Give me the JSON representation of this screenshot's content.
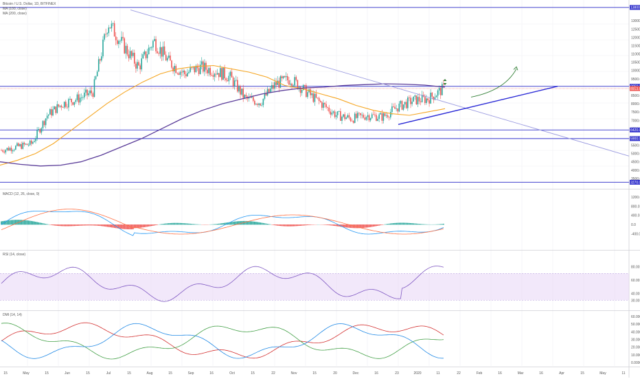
{
  "header": {
    "symbol_line": "Bitcoin / U.S. Dollar, 1D, BITFINEX",
    "ma_fast_label": "MA (100, close)",
    "ma_slow_label": "MA (200, close)"
  },
  "panels": {
    "macd_label": "MACD (12, 26, close, 9)",
    "rsi_label": "RSI (14, close)",
    "dmi_label": "DMI (14, 14)"
  },
  "colors": {
    "candle_up": "#26a69a",
    "candle_down": "#ef5350",
    "ma_fast": "#f5a623",
    "ma_slow": "#5b3d99",
    "trendline": "#2a2ad6",
    "level_line": "#3333cc",
    "red_level": "#ef5350",
    "rsi_line": "#7e57c2",
    "rsi_band": "#e9d8f7",
    "arrow": "#2e7d32",
    "macd_line": "#2196f3",
    "signal_line": "#ff7043"
  },
  "price_scale": {
    "ticks": [
      "13000.0",
      "12500.0",
      "12000.0",
      "11500.0",
      "11000.0",
      "10500.0",
      "10000.0",
      "9500.0",
      "8500.0",
      "8000.0",
      "7500.0",
      "7000.0",
      "6500.0",
      "5500.0",
      "5000.0",
      "4500.0",
      "4000.0",
      "3500.0"
    ],
    "tags": [
      {
        "label": "13800.0",
        "kind": "level"
      },
      {
        "label": "9050.0",
        "kind": "level"
      },
      {
        "label": "8913.8",
        "kind": "price"
      },
      {
        "label": "6420.0",
        "kind": "level"
      },
      {
        "label": "5900.0",
        "kind": "level"
      },
      {
        "label": "3270.0",
        "kind": "level"
      }
    ]
  },
  "macd_scale": {
    "ticks": [
      "1200.0",
      "800.0",
      "400.0",
      "0.0",
      "-400.0"
    ]
  },
  "rsi_scale": {
    "ticks": [
      "80.00",
      "60.00",
      "40.00",
      "30.00"
    ]
  },
  "dmi_scale": {
    "ticks": [
      "60.0000",
      "50.0000",
      "40.0000",
      "30.0000",
      "20.0000",
      "10.0000",
      "0.0000"
    ]
  },
  "time_axis": {
    "labels": [
      "15",
      "May",
      "15",
      "Jun",
      "15",
      "Jul",
      "15",
      "Aug",
      "15",
      "Sep",
      "16",
      "Oct",
      "15",
      "22",
      "Nov",
      "15",
      "20",
      "Dec",
      "16",
      "23",
      "2020",
      "11",
      "22",
      "Feb",
      "16",
      "Mar",
      "16",
      "Apr",
      "15",
      "May",
      "11"
    ]
  },
  "chart_data": {
    "type": "candlestick",
    "series": [
      {
        "name": "Bitcoin / U.S. Dollar, 1D, BITFINEX",
        "close": [
          5200,
          5400,
          5600,
          7300,
          8000,
          8300,
          8700,
          12900,
          11500,
          10200,
          11800,
          10500,
          9800,
          10200,
          10000,
          9600,
          8300,
          8100,
          9200,
          9500,
          8700,
          8000,
          7300,
          7100,
          7300,
          7200,
          7800,
          8200,
          8300,
          8900
        ]
      },
      {
        "name": "MA (100, close)",
        "values": [
          4300,
          4600,
          5000,
          5600,
          6400,
          7200,
          8000,
          8700,
          9300,
          9800,
          10100,
          10250,
          10300,
          10100,
          9900,
          9600,
          9100,
          8900,
          8600,
          8300,
          7900,
          7600,
          7400,
          7300,
          7500,
          7700
        ]
      },
      {
        "name": "MA (200, close)",
        "values": [
          4500,
          4350,
          4250,
          4300,
          4500,
          4900,
          5400,
          5900,
          6500,
          7100,
          7600,
          8000,
          8300,
          8600,
          8800,
          8950,
          9000,
          9100,
          9150,
          9200,
          9180,
          9120,
          9000
        ]
      }
    ],
    "levels": [
      13800,
      9050,
      6420,
      5900,
      3270
    ],
    "last_price": 8913.8
  }
}
